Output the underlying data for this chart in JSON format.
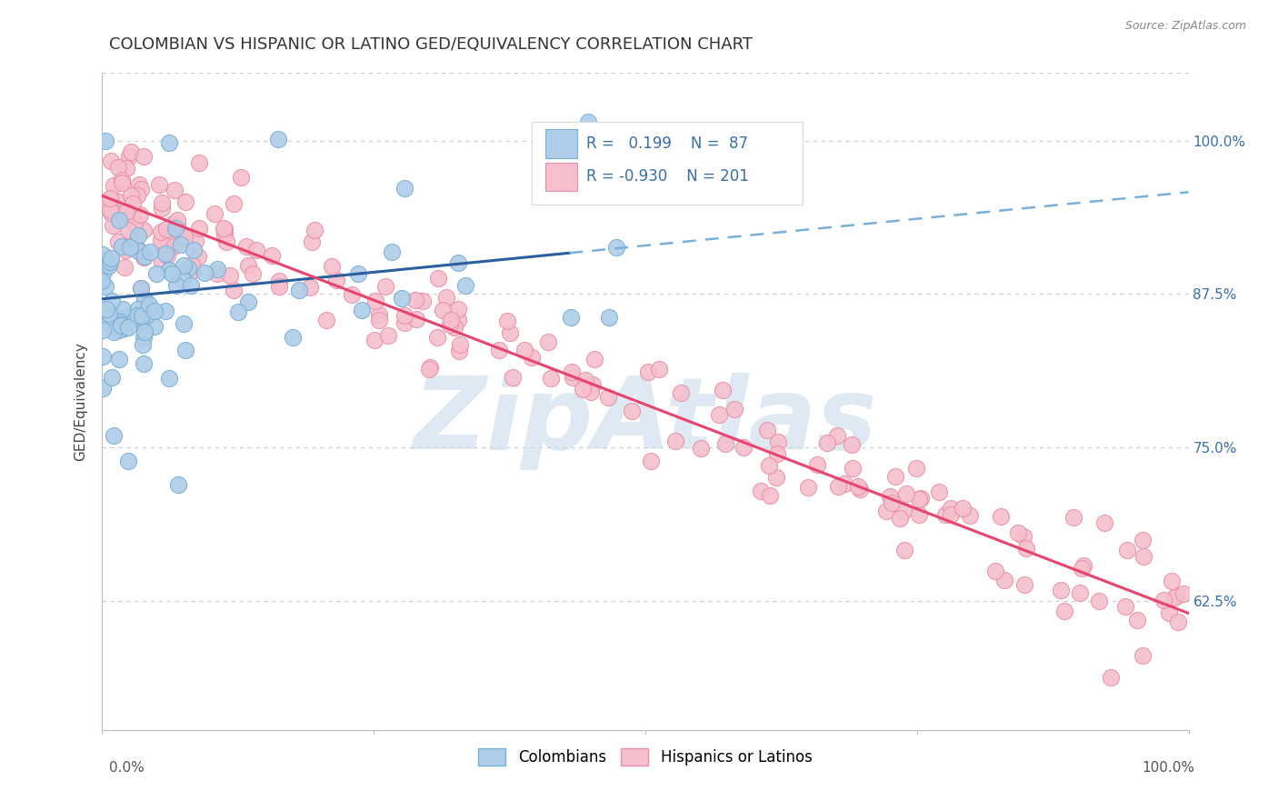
{
  "title": "COLOMBIAN VS HISPANIC OR LATINO GED/EQUIVALENCY CORRELATION CHART",
  "source": "Source: ZipAtlas.com",
  "ylabel": "GED/Equivalency",
  "yticks": [
    0.625,
    0.75,
    0.875,
    1.0
  ],
  "ytick_labels": [
    "62.5%",
    "75.0%",
    "87.5%",
    "100.0%"
  ],
  "xlim": [
    0.0,
    1.0
  ],
  "ylim": [
    0.52,
    1.055
  ],
  "blue_R": 0.199,
  "blue_N": 87,
  "pink_R": -0.93,
  "pink_N": 201,
  "blue_color": "#aecde8",
  "blue_edge": "#7aafd4",
  "pink_color": "#f5bfce",
  "pink_edge": "#e891a8",
  "trend_blue_solid": "#2c5f9e",
  "trend_blue_dashed": "#7ab0d8",
  "trend_pink": "#e8446e",
  "background": "#ffffff",
  "watermark": "ZipAtlas",
  "watermark_color": "#c5d8ec",
  "legend_blue_label": "Colombians",
  "legend_pink_label": "Hispanics or Latinos",
  "grid_color": "#cccccc",
  "title_fontsize": 13,
  "axis_label_fontsize": 11,
  "ytick_label_color": "#3a6ea8",
  "blue_line_start_y": 0.871,
  "blue_line_end_y": 0.958,
  "blue_line_solid_end_x": 0.43,
  "pink_line_start_y": 0.955,
  "pink_line_end_y": 0.615
}
